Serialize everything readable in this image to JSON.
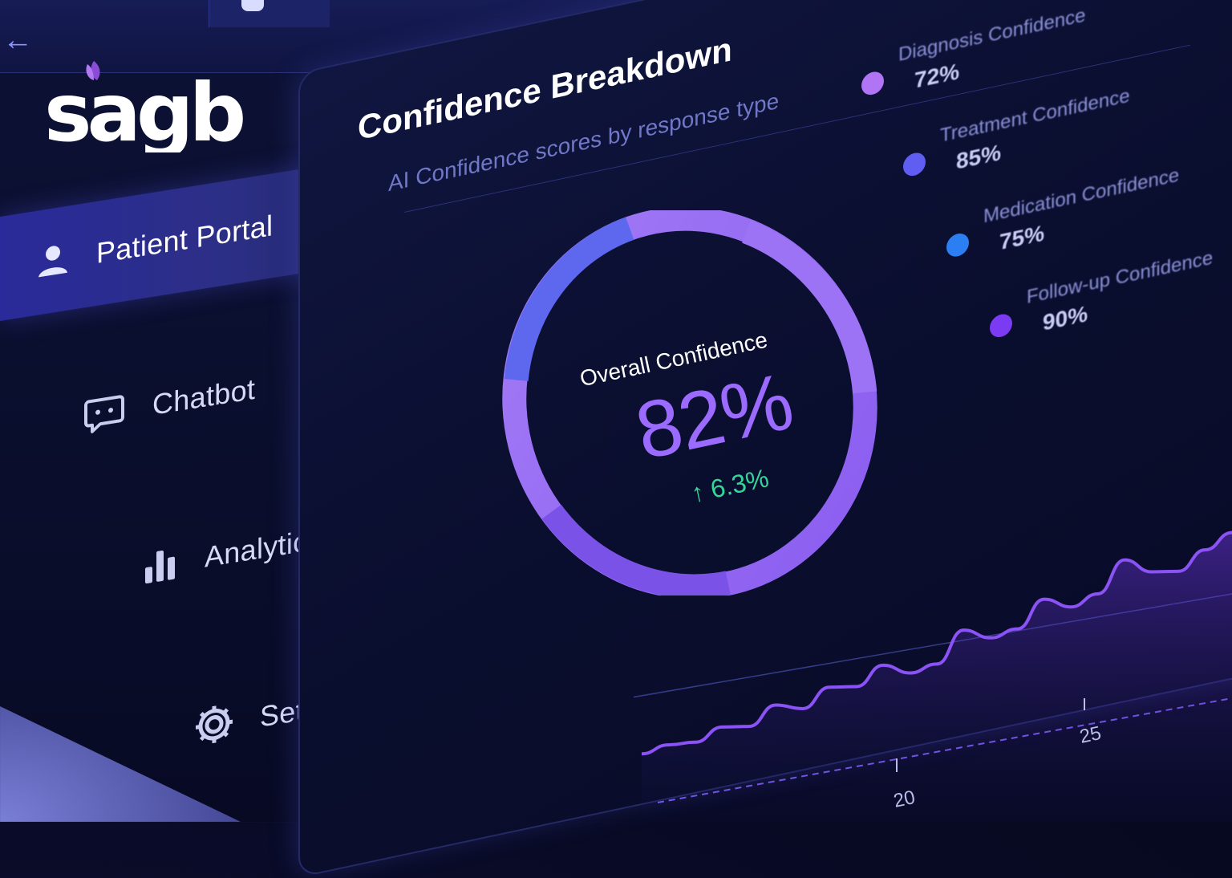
{
  "logo_text": "sagb",
  "sidebar": {
    "items": [
      {
        "label": "Patient Portal",
        "icon": "user-icon",
        "active": true
      },
      {
        "label": "Chatbot",
        "icon": "chat-bubble-icon",
        "active": false
      },
      {
        "label": "Analytics",
        "icon": "bar-chart-icon",
        "active": false
      },
      {
        "label": "Settings",
        "icon": "gear-icon",
        "active": false
      }
    ]
  },
  "panel": {
    "title": "Confidence Breakdown",
    "subtitle": "AI Confidence scores by response type"
  },
  "overall": {
    "label": "Overall Confidence",
    "value": "82%",
    "delta": "↑ 6.3%"
  },
  "legend": [
    {
      "label": "Diagnosis Confidence",
      "value": "72%",
      "color": "#b174f5"
    },
    {
      "label": "Treatment Confidence",
      "value": "85%",
      "color": "#5f5df2"
    },
    {
      "label": "Medication Confidence",
      "value": "75%",
      "color": "#2b7ff2"
    },
    {
      "label": "Follow-up Confidence",
      "value": "90%",
      "color": "#7a3bf2"
    }
  ],
  "colors": {
    "accent_purple": "#9b6bff",
    "accent_blue": "#5a6bf0",
    "positive_green": "#35d69a",
    "background": "#0a0e2c"
  },
  "chart_data": {
    "type": "line",
    "x_tick_labels": [
      "20",
      "25"
    ],
    "series": [
      {
        "values": [
          8,
          10,
          9,
          14,
          12,
          20,
          16,
          24,
          22,
          30,
          24,
          26,
          40,
          34,
          36,
          48,
          42,
          46,
          60,
          52,
          50,
          58,
          64
        ]
      }
    ]
  }
}
